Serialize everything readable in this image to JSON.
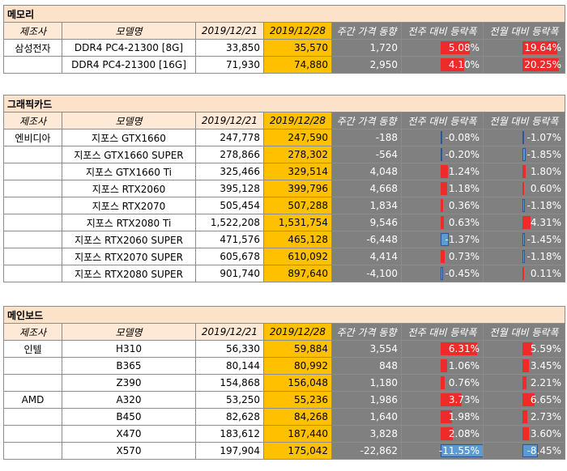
{
  "sections": [
    {
      "title": "메모리",
      "headers": [
        "제조사",
        "모델명",
        "2019/12/21",
        "2019/12/28",
        "주간 가격 동향",
        "전주 대비 등락폭",
        "전월 대비 등락폭"
      ],
      "rows": [
        {
          "maker": "삼성전자",
          "model": "DDR4 PC4-21300 [8G]",
          "prev": "33,850",
          "cur": "35,570",
          "change": "1,720",
          "week": "5.08%",
          "week_v": 5.08,
          "month": "19.64%",
          "month_v": 19.64
        },
        {
          "maker": "",
          "model": "DDR4 PC4-21300 [16G]",
          "prev": "71,930",
          "cur": "74,880",
          "change": "2,950",
          "week": "4.10%",
          "week_v": 4.1,
          "month": "20.25%",
          "month_v": 20.25
        }
      ]
    },
    {
      "title": "그래픽카드",
      "headers": [
        "제조사",
        "모델명",
        "2019/12/21",
        "2019/12/28",
        "주간 가격 동향",
        "전주 대비 등락폭",
        "전월 대비 등락폭"
      ],
      "rows": [
        {
          "maker": "엔비디아",
          "model": "지포스 GTX1660",
          "prev": "247,778",
          "cur": "247,590",
          "change": "-188",
          "week": "-0.08%",
          "week_v": -0.08,
          "month": "-1.07%",
          "month_v": -1.07
        },
        {
          "maker": "",
          "model": "지포스 GTX1660 SUPER",
          "prev": "278,866",
          "cur": "278,302",
          "change": "-564",
          "week": "-0.20%",
          "week_v": -0.2,
          "month": "-1.85%",
          "month_v": -1.85
        },
        {
          "maker": "",
          "model": "지포스 GTX1660 Ti",
          "prev": "325,466",
          "cur": "329,514",
          "change": "4,048",
          "week": "1.24%",
          "week_v": 1.24,
          "month": "1.80%",
          "month_v": 1.8
        },
        {
          "maker": "",
          "model": "지포스 RTX2060",
          "prev": "395,128",
          "cur": "399,796",
          "change": "4,668",
          "week": "1.18%",
          "week_v": 1.18,
          "month": "0.60%",
          "month_v": 0.6
        },
        {
          "maker": "",
          "model": "지포스 RTX2070",
          "prev": "505,454",
          "cur": "507,288",
          "change": "1,834",
          "week": "0.36%",
          "week_v": 0.36,
          "month": "-1.18%",
          "month_v": -1.18
        },
        {
          "maker": "",
          "model": "지포스 RTX2080 Ti",
          "prev": "1,522,208",
          "cur": "1,531,754",
          "change": "9,546",
          "week": "0.63%",
          "week_v": 0.63,
          "month": "4.31%",
          "month_v": 4.31
        },
        {
          "maker": "",
          "model": "지포스 RTX2060 SUPER",
          "prev": "471,576",
          "cur": "465,128",
          "change": "-6,448",
          "week": "-1.37%",
          "week_v": -1.37,
          "month": "-1.45%",
          "month_v": -1.45
        },
        {
          "maker": "",
          "model": "지포스 RTX2070 SUPER",
          "prev": "605,678",
          "cur": "610,092",
          "change": "4,414",
          "week": "0.73%",
          "week_v": 0.73,
          "month": "-1.18%",
          "month_v": -1.18
        },
        {
          "maker": "",
          "model": "지포스 RTX2080 SUPER",
          "prev": "901,740",
          "cur": "897,640",
          "change": "-4,100",
          "week": "-0.45%",
          "week_v": -0.45,
          "month": "0.11%",
          "month_v": 0.11
        }
      ]
    },
    {
      "title": "메인보드",
      "headers": [
        "제조사",
        "모델명",
        "2019/12/21",
        "2019/12/28",
        "주간 가격 동향",
        "전주 대비 등락폭",
        "전월 대비 등락폭"
      ],
      "rows": [
        {
          "maker": "인텔",
          "model": "H310",
          "prev": "56,330",
          "cur": "59,884",
          "change": "3,554",
          "week": "6.31%",
          "week_v": 6.31,
          "month": "5.59%",
          "month_v": 5.59
        },
        {
          "maker": "",
          "model": "B365",
          "prev": "80,144",
          "cur": "80,992",
          "change": "848",
          "week": "1.06%",
          "week_v": 1.06,
          "month": "3.45%",
          "month_v": 3.45
        },
        {
          "maker": "",
          "model": "Z390",
          "prev": "154,868",
          "cur": "156,048",
          "change": "1,180",
          "week": "0.76%",
          "week_v": 0.76,
          "month": "2.21%",
          "month_v": 2.21
        },
        {
          "maker": "AMD",
          "model": "A320",
          "prev": "53,250",
          "cur": "55,236",
          "change": "1,986",
          "week": "3.73%",
          "week_v": 3.73,
          "month": "6.65%",
          "month_v": 6.65
        },
        {
          "maker": "",
          "model": "B450",
          "prev": "82,628",
          "cur": "84,268",
          "change": "1,640",
          "week": "1.98%",
          "week_v": 1.98,
          "month": "2.73%",
          "month_v": 2.73
        },
        {
          "maker": "",
          "model": "X470",
          "prev": "183,612",
          "cur": "187,440",
          "change": "3,828",
          "week": "2.08%",
          "week_v": 2.08,
          "month": "3.60%",
          "month_v": 3.6
        },
        {
          "maker": "",
          "model": "X570",
          "prev": "197,904",
          "cur": "175,042",
          "change": "-22,862",
          "week": "-11.55%",
          "week_v": -11.55,
          "month": "-8.45%",
          "month_v": -8.45
        }
      ]
    }
  ]
}
